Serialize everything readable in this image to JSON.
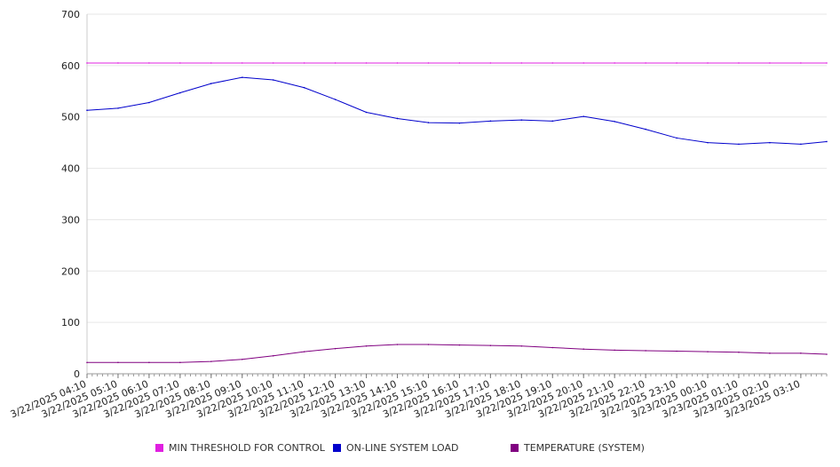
{
  "chart_data": {
    "type": "line",
    "title": "",
    "xlabel": "",
    "ylabel": "",
    "ylim": [
      0,
      700
    ],
    "yticks": [
      0,
      100,
      200,
      300,
      400,
      500,
      600,
      700
    ],
    "grid": true,
    "legend_position": "bottom",
    "x_start": "3/22/2025 04:10",
    "x_end": "3/23/2025 04:00",
    "x_tick_labels": [
      "3/22/2025 04:10",
      "3/22/2025 05:10",
      "3/22/2025 06:10",
      "3/22/2025 07:10",
      "3/22/2025 08:10",
      "3/22/2025 09:10",
      "3/22/2025 10:10",
      "3/22/2025 11:10",
      "3/22/2025 12:10",
      "3/22/2025 13:10",
      "3/22/2025 14:10",
      "3/22/2025 15:10",
      "3/22/2025 16:10",
      "3/22/2025 17:10",
      "3/22/2025 18:10",
      "3/22/2025 19:10",
      "3/22/2025 20:10",
      "3/22/2025 21:10",
      "3/22/2025 22:10",
      "3/22/2025 23:10",
      "3/23/2025 00:10",
      "3/23/2025 01:10",
      "3/23/2025 02:10",
      "3/23/2025 03:10"
    ],
    "x": [
      "3/22/2025 04:10",
      "3/22/2025 05:10",
      "3/22/2025 06:10",
      "3/22/2025 07:10",
      "3/22/2025 08:10",
      "3/22/2025 09:10",
      "3/22/2025 10:10",
      "3/22/2025 11:10",
      "3/22/2025 12:10",
      "3/22/2025 13:10",
      "3/22/2025 14:10",
      "3/22/2025 15:10",
      "3/22/2025 16:10",
      "3/22/2025 17:10",
      "3/22/2025 18:10",
      "3/22/2025 19:10",
      "3/22/2025 20:10",
      "3/22/2025 21:10",
      "3/22/2025 22:10",
      "3/22/2025 23:10",
      "3/23/2025 00:10",
      "3/23/2025 01:10",
      "3/23/2025 02:10",
      "3/23/2025 03:10",
      "3/23/2025 04:00"
    ],
    "series": [
      {
        "name": "MIN THRESHOLD FOR CONTROL",
        "color": "#e020e0",
        "values": [
          605,
          605,
          605,
          605,
          605,
          605,
          605,
          605,
          605,
          605,
          605,
          605,
          605,
          605,
          605,
          605,
          605,
          605,
          605,
          605,
          605,
          605,
          605,
          605,
          605
        ]
      },
      {
        "name": "ON-LINE SYSTEM LOAD",
        "color": "#0000cc",
        "values": [
          513,
          517,
          528,
          547,
          565,
          577,
          572,
          557,
          534,
          509,
          497,
          489,
          488,
          492,
          494,
          492,
          501,
          491,
          476,
          459,
          450,
          447,
          450,
          447,
          452
        ]
      },
      {
        "name": "TEMPERATURE (SYSTEM)",
        "color": "#800080",
        "values": [
          22,
          22,
          22,
          22,
          24,
          28,
          35,
          43,
          49,
          54,
          57,
          57,
          56,
          55,
          54,
          51,
          48,
          46,
          45,
          44,
          43,
          42,
          40,
          40,
          38
        ]
      }
    ]
  }
}
